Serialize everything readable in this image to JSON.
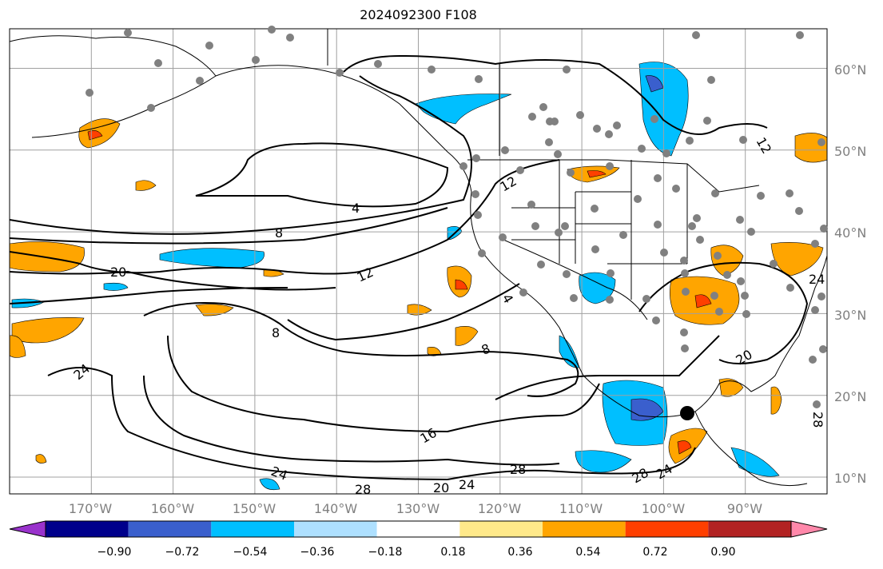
{
  "title": "2024092300 F108",
  "map": {
    "projection": "cylindrical",
    "lat_labels": [
      {
        "text": "60°N",
        "value": 60
      },
      {
        "text": "50°N",
        "value": 50
      },
      {
        "text": "40°N",
        "value": 40
      },
      {
        "text": "30°N",
        "value": 30
      },
      {
        "text": "20°N",
        "value": 20
      },
      {
        "text": "10°N",
        "value": 10
      }
    ],
    "lon_labels": [
      {
        "text": "170°W",
        "value": -170
      },
      {
        "text": "160°W",
        "value": -160
      },
      {
        "text": "150°W",
        "value": -150
      },
      {
        "text": "140°W",
        "value": -140
      },
      {
        "text": "130°W",
        "value": -130
      },
      {
        "text": "120°W",
        "value": -120
      },
      {
        "text": "110°W",
        "value": -110
      },
      {
        "text": "100°W",
        "value": -100
      },
      {
        "text": "90°W",
        "value": -90
      }
    ],
    "contour_labels": [
      "4",
      "8",
      "12",
      "16",
      "20",
      "24",
      "28"
    ],
    "colors": {
      "contour": "#000000",
      "gridline": "#a0a0a0",
      "station": "#808080",
      "pos_light": "#ffe98a",
      "pos_mid": "#ffa500",
      "pos_strong": "#ff3f00",
      "neg_light": "#aee0ff",
      "neg_mid": "#00bfff",
      "neg_strong": "#3a5fcd"
    }
  },
  "colorbar": {
    "ticks": [
      "−0.90",
      "−0.72",
      "−0.54",
      "−0.36",
      "−0.18",
      "0.18",
      "0.36",
      "0.54",
      "0.72",
      "0.90"
    ],
    "colors": [
      "#9932cc",
      "#00008b",
      "#3a5fcd",
      "#00bfff",
      "#aee0ff",
      "#ffffff",
      "#ffe98a",
      "#ffa500",
      "#ff3f00",
      "#b22222",
      "#ff88aa"
    ]
  }
}
